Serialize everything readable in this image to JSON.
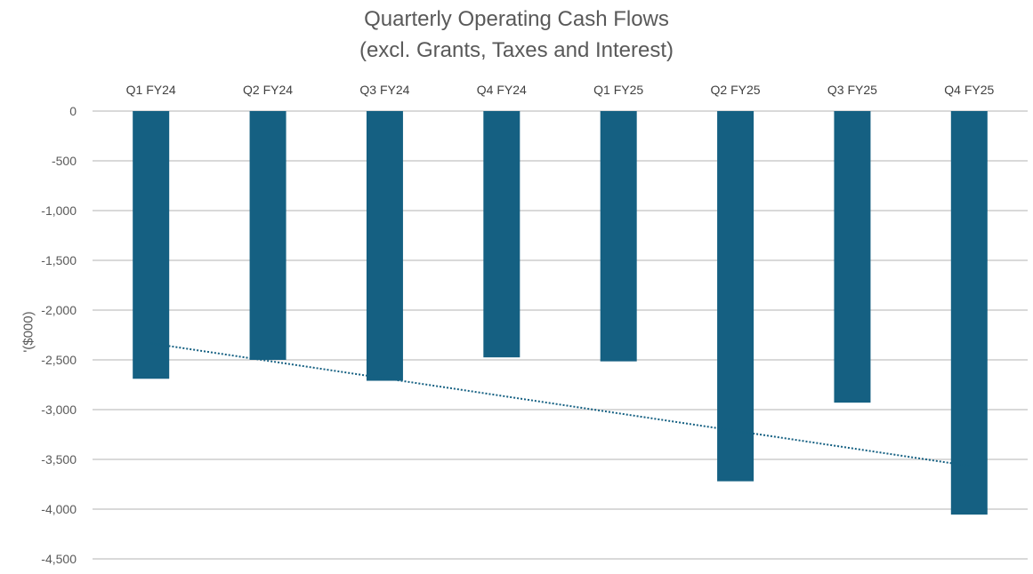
{
  "chart_data": {
    "type": "bar",
    "title": "Quarterly Operating Cash Flows",
    "subtitle": "(excl. Grants, Taxes and Interest)",
    "ylabel": "'($000)",
    "xlabel": "",
    "categories": [
      "Q1 FY24",
      "Q2 FY24",
      "Q3 FY24",
      "Q4 FY24",
      "Q1 FY25",
      "Q2 FY25",
      "Q3 FY25",
      "Q4 FY25"
    ],
    "values": [
      -2690,
      -2500,
      -2710,
      -2475,
      -2515,
      -3720,
      -2930,
      -4055
    ],
    "ylim": [
      -4500,
      0
    ],
    "yticks": [
      0,
      -500,
      -1000,
      -1500,
      -2000,
      -2500,
      -3000,
      -3500,
      -4000,
      -4500
    ],
    "ytick_labels": [
      "0",
      "-500",
      "-1,000",
      "-1,500",
      "-2,000",
      "-2,500",
      "-3,000",
      "-3,500",
      "-4,000",
      "-4,500"
    ],
    "category_axis_position": "top",
    "grid": true,
    "trendline": "linear",
    "trendline_style": "dotted",
    "bar_color": "#156082",
    "grid_color": "#d9d9d9"
  }
}
